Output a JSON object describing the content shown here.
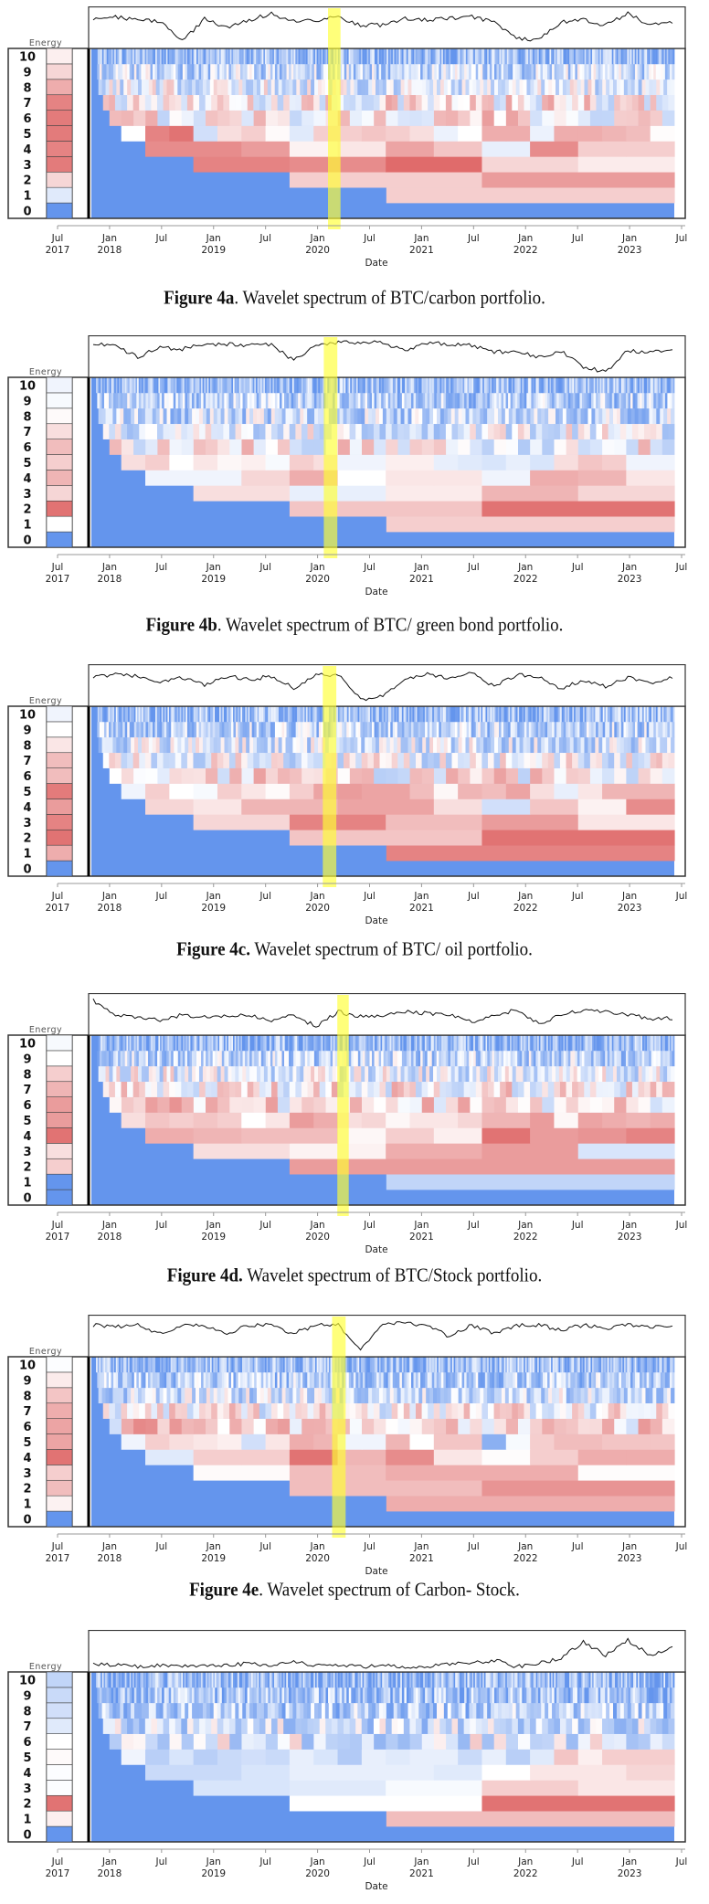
{
  "axis": {
    "ticks": [
      {
        "m": "Jul",
        "y": "2017"
      },
      {
        "m": "Jan",
        "y": "2018"
      },
      {
        "m": "Jul",
        "y": ""
      },
      {
        "m": "Jan",
        "y": "2019"
      },
      {
        "m": "Jul",
        "y": ""
      },
      {
        "m": "Jan",
        "y": "2020"
      },
      {
        "m": "Jul",
        "y": ""
      },
      {
        "m": "Jan",
        "y": "2021"
      },
      {
        "m": "Jul",
        "y": ""
      },
      {
        "m": "Jan",
        "y": "2022"
      },
      {
        "m": "Jul",
        "y": ""
      },
      {
        "m": "Jan",
        "y": "2023"
      },
      {
        "m": "Jul",
        "y": ""
      }
    ],
    "xlabel": "Date",
    "legend_title": "Energy",
    "row_labels": [
      "0",
      "1",
      "2",
      "3",
      "4",
      "5",
      "6",
      "7",
      "8",
      "9",
      "10"
    ]
  },
  "colors": {
    "negative": "#6495ED",
    "neutral": "#FFFFFF",
    "positive": "#DC5A5A",
    "highlight": "#FFFF33",
    "line": "#111111"
  },
  "chart_data": [
    {
      "type": "heatmap",
      "caption_label": "Figure 4a",
      "caption_text": ". Wavelet spectrum of BTC/carbon portfolio.",
      "x_range": [
        2017.83,
        2023.43
      ],
      "highlight": [
        2020.1,
        2020.22
      ],
      "energy": [
        -1,
        -0.2,
        0.25,
        0.8,
        0.75,
        0.8,
        0.8,
        0.75,
        0.5,
        0.25,
        0.1
      ],
      "rows": {
        "1": [
          0.3
        ],
        "2": [
          0.3,
          0.6
        ],
        "3": [
          0.75,
          0.7,
          0.9,
          0.25,
          0.12
        ],
        "4": [
          0.7,
          0.7,
          0.6,
          0.08,
          0.15,
          0.55,
          0.35,
          -0.15,
          0.7,
          0.3,
          0.3
        ],
        "5": [
          0,
          0.75,
          0.85,
          -0.3,
          0.2,
          0.3,
          0.03,
          -0.2,
          0.3,
          0.3,
          0.35,
          0.3,
          0.2,
          -0.12,
          0,
          0.5,
          0.5,
          -0.12,
          0.5,
          0.5,
          0.45,
          0.4,
          0.02
        ]
      },
      "high_freq_bias": {
        "6": 0.1,
        "7": 0.05,
        "8": -0.15,
        "9": -0.35,
        "10": -0.65
      },
      "index_series": [
        0.8,
        0.85,
        0.75,
        0.7,
        0.1,
        0.8,
        0.5,
        0.75,
        0.95,
        0.7,
        0.75,
        0.85,
        0.6,
        0.6,
        0.8,
        0.75,
        0.8,
        0.85,
        0.7,
        0.2,
        0.15,
        0.7,
        0.75,
        0.6,
        0.95,
        0.6,
        0.7
      ]
    },
    {
      "type": "heatmap",
      "caption_label": "Figure 4b",
      "caption_text": ". Wavelet spectrum of BTC/ green bond portfolio.",
      "x_range": [
        2017.83,
        2023.43
      ],
      "highlight": [
        2020.06,
        2020.19
      ],
      "energy": [
        -1,
        0,
        0.85,
        0.25,
        0.45,
        0.3,
        0.4,
        0.2,
        0.03,
        -0.05,
        -0.1
      ],
      "rows": {
        "1": [
          0.3
        ],
        "2": [
          0.35,
          0.85
        ],
        "3": [
          0.2,
          -0.15,
          0.12,
          0.45,
          0.25
        ],
        "4": [
          -0.1,
          -0.1,
          0.25,
          0.5,
          0,
          0.15,
          0.15,
          -0.1,
          0.5,
          0.45,
          0.15
        ],
        "5": [
          0.2,
          0.3,
          0,
          0.15,
          0.05,
          0.1,
          -0.05,
          0.3,
          0.2,
          -0.1,
          -0.1,
          0.1,
          0.1,
          -0.15,
          -0.2,
          -0.25,
          -0.15,
          -0.25,
          0.2,
          0.35,
          0.3,
          -0.1,
          -0.1
        ]
      },
      "high_freq_bias": {
        "6": 0,
        "7": -0.15,
        "8": -0.35,
        "9": -0.45,
        "10": -0.6
      },
      "index_series": [
        0.9,
        0.85,
        0.5,
        0.8,
        0.75,
        0.9,
        0.9,
        0.85,
        0.9,
        0.4,
        0.9,
        0.95,
        0.95,
        0.95,
        0.7,
        0.95,
        0.9,
        0.85,
        0.65,
        0.7,
        0.5,
        0.7,
        0.2,
        0.05,
        0.7,
        0.65,
        0.75
      ]
    },
    {
      "type": "heatmap",
      "caption_label": "Figure 4c.",
      "caption_text": " Wavelet spectrum of BTC/ oil portfolio.",
      "x_range": [
        2017.83,
        2023.43
      ],
      "highlight": [
        2020.05,
        2020.18
      ],
      "energy": [
        -1,
        0.5,
        0.85,
        0.75,
        0.6,
        0.8,
        0.4,
        0.4,
        0.15,
        0,
        -0.1
      ],
      "rows": {
        "1": [
          0.75
        ],
        "2": [
          0.35,
          0.85
        ],
        "3": [
          0.25,
          0.75,
          0.4,
          0.6,
          0.15
        ],
        "4": [
          0.25,
          0.15,
          0.45,
          0.45,
          0.55,
          0.55,
          0.2,
          -0.3,
          0.35,
          0.08,
          0.7
        ],
        "5": [
          -0.1,
          0.3,
          0,
          -0.05,
          0.3,
          0.15,
          0.03,
          0.3,
          0.55,
          0.6,
          0.55,
          0.55,
          0.4,
          0.05,
          0.45,
          0.4,
          0.55,
          0.2,
          -0.15,
          0.15,
          0.45,
          0.45,
          0.45
        ]
      },
      "high_freq_bias": {
        "6": 0.05,
        "7": -0.1,
        "8": -0.25,
        "9": -0.4,
        "10": -0.6
      },
      "index_series": [
        0.8,
        0.85,
        0.8,
        0.6,
        0.75,
        0.55,
        0.8,
        0.7,
        0.8,
        0.45,
        0.85,
        0.85,
        0.1,
        0.2,
        0.7,
        0.85,
        0.75,
        0.9,
        0.5,
        0.85,
        0.8,
        0.4,
        0.7,
        0.5,
        0.75,
        0.6,
        0.75
      ]
    },
    {
      "type": "heatmap",
      "caption_label": "Figure 4d.",
      "caption_text": " Wavelet spectrum of BTC/Stock portfolio.",
      "x_range": [
        2017.83,
        2023.43
      ],
      "highlight": [
        2020.19,
        2020.3
      ],
      "energy": [
        -1,
        -1,
        0.3,
        0.2,
        0.85,
        0.6,
        0.6,
        0.45,
        0.3,
        0,
        -0.05
      ],
      "rows": {
        "1": [
          -0.4
        ],
        "2": [
          0.6,
          0.6
        ],
        "3": [
          0.2,
          0.08,
          0.5,
          0.6,
          -0.25
        ],
        "4": [
          0.5,
          0.45,
          0.4,
          0.4,
          0.05,
          0.3,
          0.1,
          0.85,
          0.6,
          0.65,
          0.75
        ],
        "5": [
          0.2,
          0.35,
          0.3,
          0.35,
          0.3,
          0,
          0.15,
          0.6,
          0.5,
          0.2,
          0.25,
          0.05,
          0.15,
          0.15,
          0.25,
          0.45,
          0.45,
          0.6,
          0.05,
          0.55,
          0.5,
          0.45,
          0.5
        ]
      },
      "high_freq_bias": {
        "6": 0.15,
        "7": 0.05,
        "8": -0.15,
        "9": -0.4,
        "10": -0.65
      },
      "index_series": [
        0.95,
        0.5,
        0.45,
        0.35,
        0.5,
        0.45,
        0.45,
        0.5,
        0.35,
        0.5,
        0.15,
        0.6,
        0.45,
        0.5,
        0.6,
        0.55,
        0.5,
        0.3,
        0.5,
        0.65,
        0.25,
        0.5,
        0.65,
        0.6,
        0.5,
        0.4,
        0.4
      ]
    },
    {
      "type": "heatmap",
      "caption_label": "Figure 4e",
      "caption_text": ". Wavelet spectrum of Carbon- Stock.",
      "x_range": [
        2017.83,
        2023.43
      ],
      "highlight": [
        2020.14,
        2020.27
      ],
      "energy": [
        -1,
        0.08,
        0.4,
        0.3,
        0.85,
        0.55,
        0.55,
        0.5,
        0.35,
        0.12,
        -0.02
      ],
      "rows": {
        "1": [
          0.5
        ],
        "2": [
          0.4,
          0.65
        ],
        "3": [
          0.03,
          0.4,
          0.5,
          0.5,
          0.02
        ],
        "4": [
          -0.2,
          0.3,
          0.3,
          0.85,
          0.45,
          0.7,
          0.15,
          0.02,
          0.3,
          0.5,
          0.5
        ],
        "5": [
          -0.1,
          0.3,
          0.2,
          0.15,
          0.1,
          -0.3,
          0.15,
          0.5,
          0.45,
          -0.1,
          -0.1,
          0.45,
          0,
          0.35,
          0.35,
          -0.75,
          -0.05,
          0.3,
          0.4,
          0.4,
          0.35,
          0.35,
          0.35
        ]
      },
      "high_freq_bias": {
        "6": 0.2,
        "7": 0,
        "8": -0.3,
        "9": -0.45,
        "10": -0.65
      },
      "index_series": [
        0.85,
        0.8,
        0.85,
        0.6,
        0.85,
        0.85,
        0.6,
        0.85,
        0.85,
        0.6,
        0.85,
        0.85,
        0.1,
        0.9,
        0.9,
        0.85,
        0.5,
        0.85,
        0.6,
        0.85,
        0.85,
        0.7,
        0.85,
        0.75,
        0.85,
        0.8,
        0.85
      ]
    },
    {
      "type": "heatmap",
      "caption_label": "",
      "caption_text": "",
      "x_range": [
        2017.83,
        2023.43
      ],
      "highlight": null,
      "energy": [
        -1,
        0.1,
        0.85,
        -0.02,
        -0.02,
        0.03,
        0,
        -0.2,
        -0.3,
        -0.35,
        -0.4
      ],
      "rows": {
        "1": [
          0.4
        ],
        "2": [
          0,
          0.85
        ],
        "3": [
          -0.25,
          -0.2,
          -0.05,
          0.3,
          0.15
        ],
        "4": [
          -0.35,
          -0.35,
          -0.25,
          -0.15,
          -0.15,
          -0.15,
          -0.2,
          0,
          0.15,
          0.15,
          0.25
        ],
        "5": [
          -0.1,
          -0.45,
          -0.25,
          -0.45,
          -0.35,
          -0.3,
          -0.35,
          -0.15,
          -0.25,
          -0.5,
          -0.15,
          -0.2,
          -0.15,
          -0.15,
          -0.35,
          -0.15,
          -0.45,
          -0.2,
          0.35,
          0.1,
          0.3,
          0.3,
          0.3
        ]
      },
      "high_freq_bias": {
        "6": -0.2,
        "7": -0.3,
        "8": -0.45,
        "9": -0.55,
        "10": -0.65
      },
      "index_series": [
        0.15,
        0.1,
        0.05,
        0.08,
        0.05,
        0.1,
        0.1,
        0.15,
        0.1,
        0.2,
        0.1,
        0.1,
        0.05,
        0.08,
        0.05,
        0.05,
        0.15,
        0.15,
        0.25,
        0.05,
        0.15,
        0.3,
        0.8,
        0.4,
        0.85,
        0.4,
        0.6
      ]
    }
  ]
}
